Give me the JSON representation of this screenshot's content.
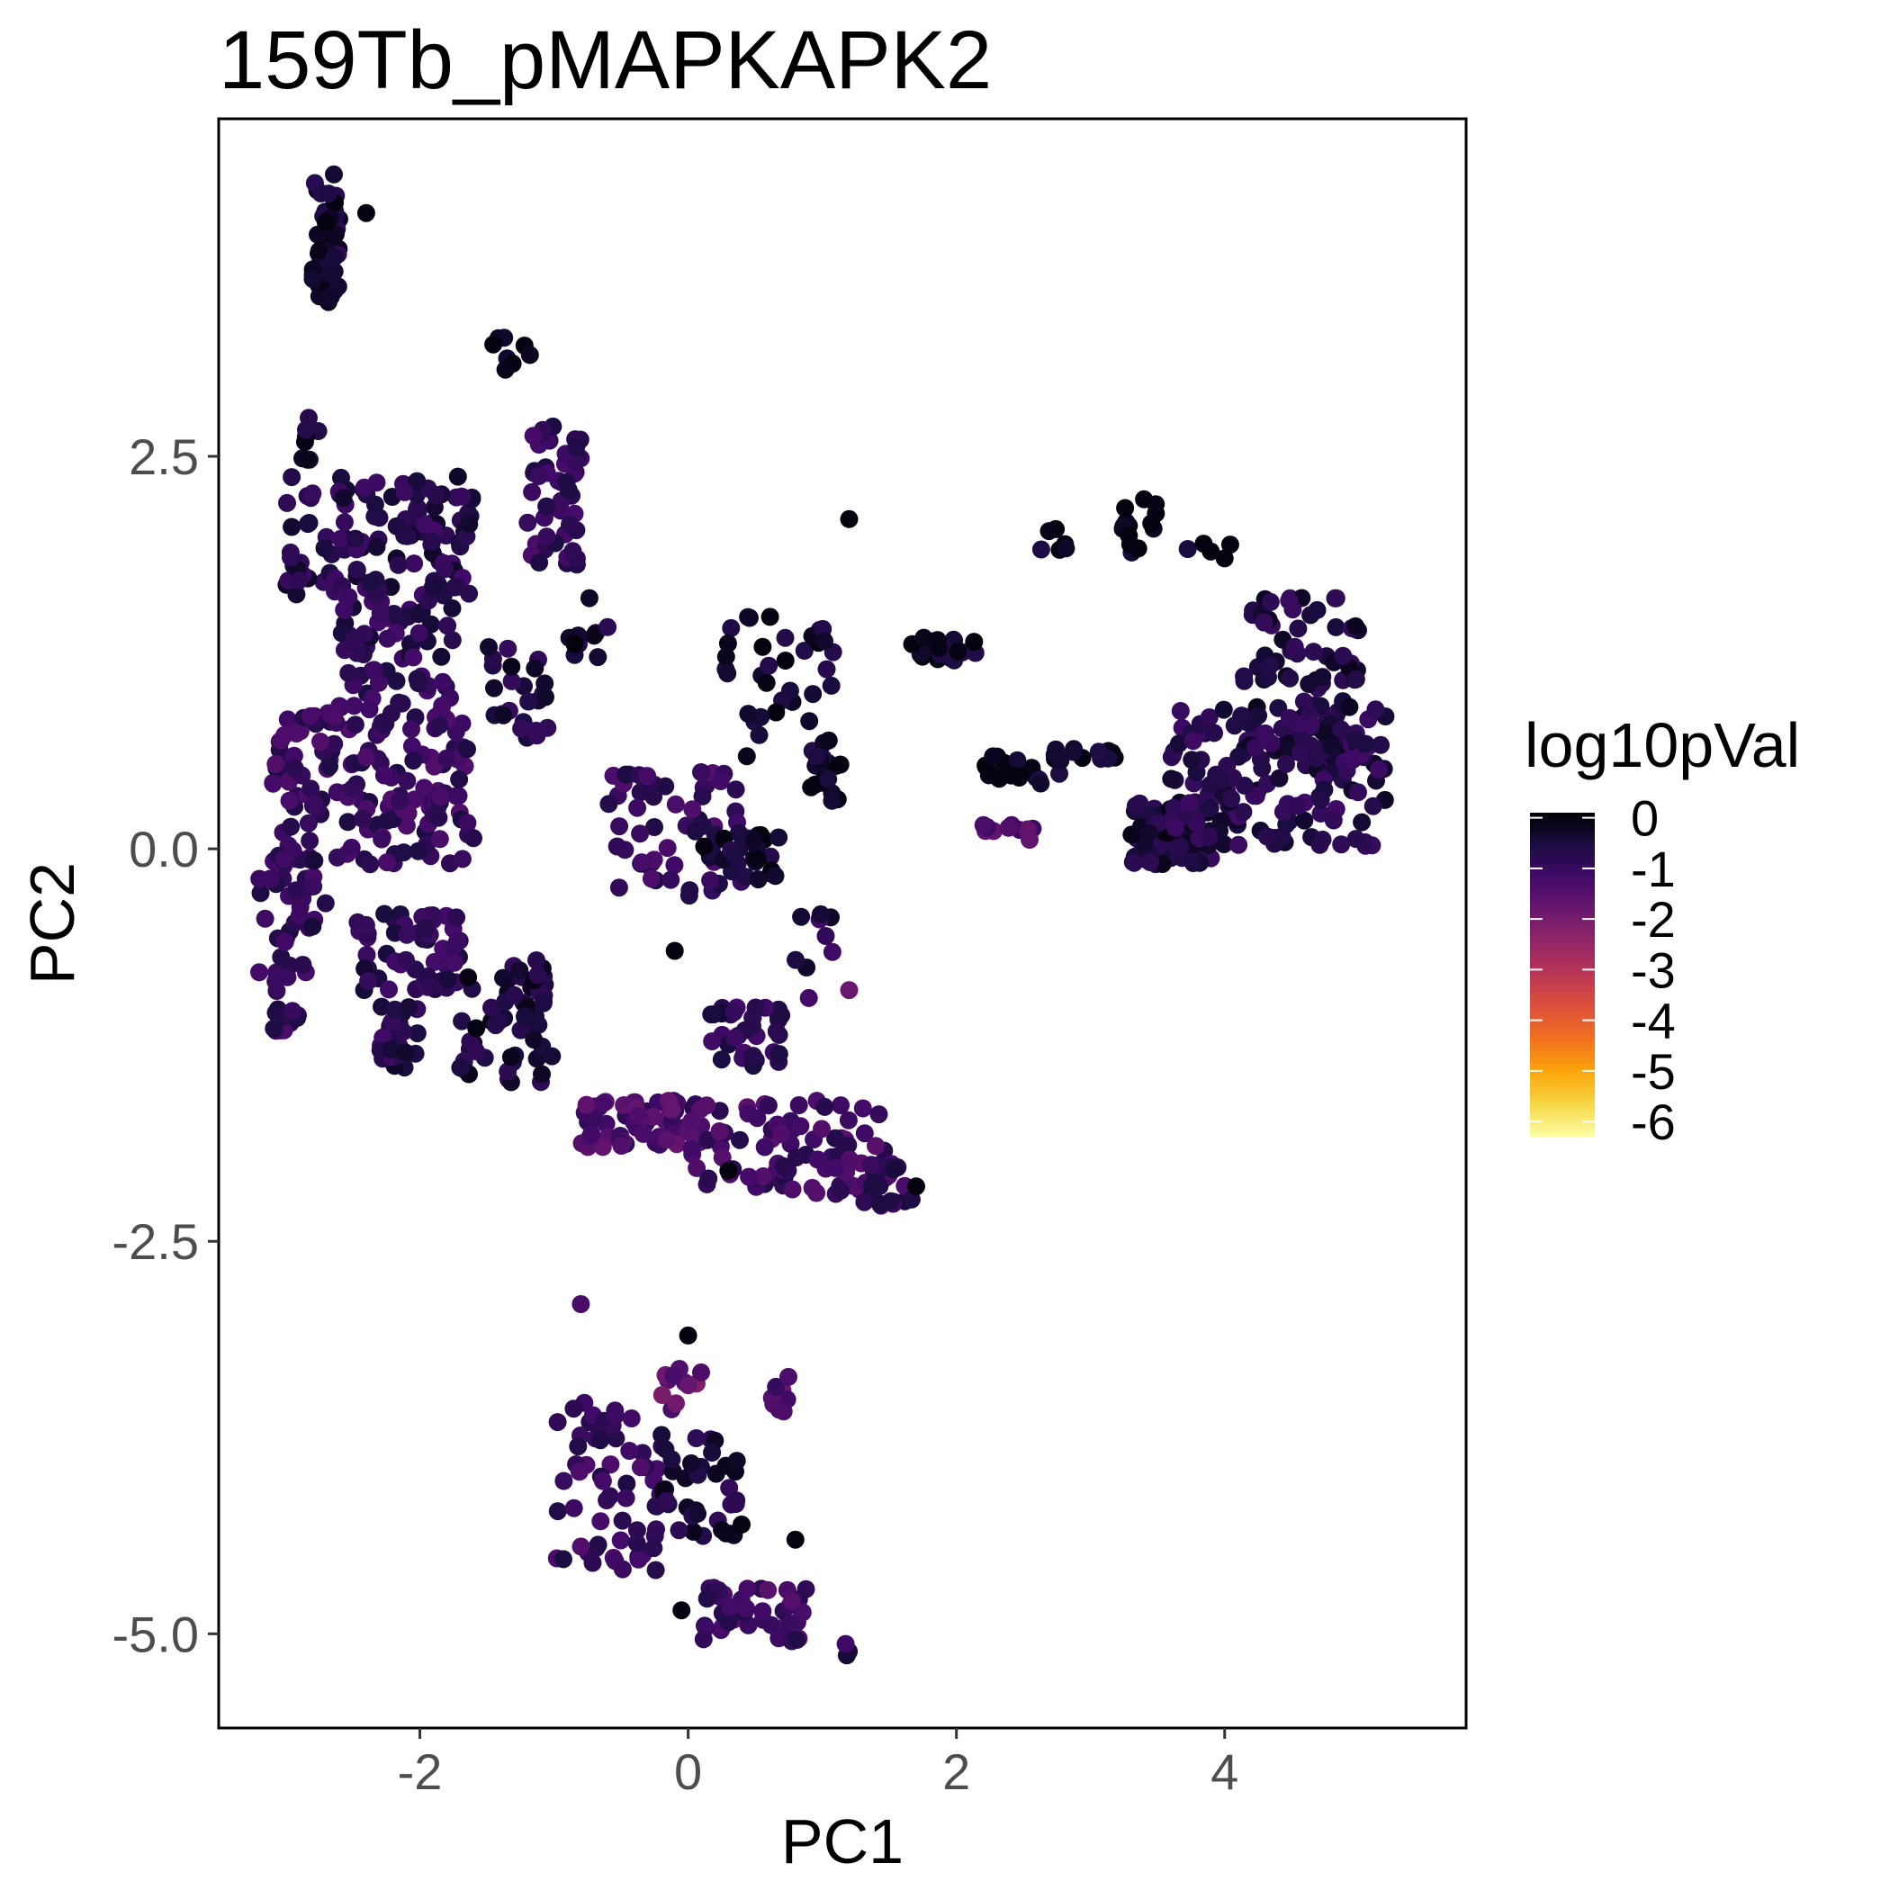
{
  "chart_data": {
    "type": "scatter",
    "title": "159Tb_pMAPKAPK2",
    "xlabel": "PC1",
    "ylabel": "PC2",
    "xlim": [
      -3.5,
      5.8
    ],
    "ylim": [
      -5.6,
      4.65
    ],
    "x_ticks": [
      -2,
      0,
      2,
      4
    ],
    "x_tick_labels": [
      "-2",
      "0",
      "2",
      "4"
    ],
    "y_ticks": [
      2.5,
      0.0,
      -2.5,
      -5.0
    ],
    "y_tick_labels": [
      "2.5",
      "0.0",
      "-2.5",
      "-5.0"
    ],
    "grid": false,
    "legend": {
      "title": "log10pVal",
      "placement": "right",
      "range": [
        -6.3,
        0.1
      ],
      "ticks": [
        0,
        -1,
        -2,
        -3,
        -4,
        -5,
        -6
      ],
      "tick_labels": [
        "0",
        "-1",
        "-2",
        "-3",
        "-4",
        "-5",
        "-6"
      ],
      "colormap": "inferno",
      "colors": [
        "#FCFFA4",
        "#F6D746",
        "#FCA50A",
        "#F1711F",
        "#DD513A",
        "#BA3655",
        "#932667",
        "#6A176E",
        "#420A68",
        "#1B0C41",
        "#000004"
      ]
    },
    "clusters": [
      {
        "x": [
          -2.8,
          -2.6
        ],
        "y": [
          3.4,
          4.3
        ],
        "n": 45,
        "val": -0.4
      },
      {
        "x": [
          -1.5,
          -1.1
        ],
        "y": [
          3.05,
          3.35
        ],
        "n": 8,
        "val": -0.2
      },
      {
        "x": [
          -2.9,
          -2.7
        ],
        "y": [
          2.45,
          2.75
        ],
        "n": 8,
        "val": -0.5
      },
      {
        "x": [
          -3.0,
          -1.6
        ],
        "y": [
          1.6,
          2.4
        ],
        "n": 120,
        "val": -0.7
      },
      {
        "x": [
          -1.2,
          -0.8
        ],
        "y": [
          1.8,
          2.7
        ],
        "n": 50,
        "val": -1.0
      },
      {
        "x": [
          -2.6,
          -1.7
        ],
        "y": [
          0.9,
          1.7
        ],
        "n": 70,
        "val": -0.8
      },
      {
        "x": [
          -3.1,
          -1.6
        ],
        "y": [
          -0.1,
          0.9
        ],
        "n": 160,
        "val": -1.0
      },
      {
        "x": [
          -3.2,
          -2.7
        ],
        "y": [
          -0.8,
          0.0
        ],
        "n": 40,
        "val": -0.9
      },
      {
        "x": [
          -3.1,
          -2.9
        ],
        "y": [
          -1.2,
          -0.8
        ],
        "n": 15,
        "val": -0.9
      },
      {
        "x": [
          -2.5,
          -1.7
        ],
        "y": [
          -0.9,
          -0.4
        ],
        "n": 60,
        "val": -0.8
      },
      {
        "x": [
          -2.3,
          -2.0
        ],
        "y": [
          -1.4,
          -1.0
        ],
        "n": 25,
        "val": -0.7
      },
      {
        "x": [
          -1.7,
          -1.0
        ],
        "y": [
          -1.5,
          -0.7
        ],
        "n": 60,
        "val": -0.5
      },
      {
        "x": [
          -1.5,
          -1.0
        ],
        "y": [
          0.7,
          1.3
        ],
        "n": 25,
        "val": -0.6
      },
      {
        "x": [
          -0.9,
          -0.6
        ],
        "y": [
          1.2,
          1.6
        ],
        "n": 10,
        "val": -0.4
      },
      {
        "x": [
          -0.8,
          0.1
        ],
        "y": [
          -1.9,
          -1.6
        ],
        "n": 60,
        "val": -1.3
      },
      {
        "x": [
          -0.6,
          0.4
        ],
        "y": [
          -0.3,
          0.5
        ],
        "n": 60,
        "val": -1.0
      },
      {
        "x": [
          0.2,
          1.1
        ],
        "y": [
          0.5,
          1.5
        ],
        "n": 40,
        "val": -0.3
      },
      {
        "x": [
          0.1,
          0.7
        ],
        "y": [
          -0.2,
          0.1
        ],
        "n": 25,
        "val": -0.3
      },
      {
        "x": [
          0.9,
          1.2
        ],
        "y": [
          0.3,
          0.6
        ],
        "n": 15,
        "val": -0.2
      },
      {
        "x": [
          0.8,
          1.1
        ],
        "y": [
          -0.8,
          -0.4
        ],
        "n": 8,
        "val": -0.7
      },
      {
        "x": [
          0.1,
          0.7
        ],
        "y": [
          -1.4,
          -1.0
        ],
        "n": 35,
        "val": -0.8
      },
      {
        "x": [
          0.0,
          1.5
        ],
        "y": [
          -2.2,
          -1.6
        ],
        "n": 90,
        "val": -1.1
      },
      {
        "x": [
          1.3,
          1.7
        ],
        "y": [
          -2.3,
          -2.0
        ],
        "n": 20,
        "val": -0.9
      },
      {
        "x": [
          1.65,
          2.2
        ],
        "y": [
          1.2,
          1.35
        ],
        "n": 25,
        "val": -0.3
      },
      {
        "x": [
          2.2,
          2.8
        ],
        "y": [
          0.4,
          0.6
        ],
        "n": 20,
        "val": -0.2
      },
      {
        "x": [
          2.2,
          2.6
        ],
        "y": [
          0.05,
          0.2
        ],
        "n": 10,
        "val": -1.5
      },
      {
        "x": [
          2.7,
          3.2
        ],
        "y": [
          0.55,
          0.65
        ],
        "n": 12,
        "val": -0.2
      },
      {
        "x": [
          2.6,
          2.9
        ],
        "y": [
          1.9,
          2.05
        ],
        "n": 6,
        "val": -0.2
      },
      {
        "x": [
          3.2,
          3.5
        ],
        "y": [
          2.0,
          2.3
        ],
        "n": 10,
        "val": -0.1
      },
      {
        "x": [
          3.2,
          4.1
        ],
        "y": [
          1.8,
          2.0
        ],
        "n": 8,
        "val": -0.1
      },
      {
        "x": [
          4.1,
          5.0
        ],
        "y": [
          0.5,
          1.6
        ],
        "n": 100,
        "val": -0.6
      },
      {
        "x": [
          3.3,
          3.9
        ],
        "y": [
          -0.1,
          0.3
        ],
        "n": 90,
        "val": -0.5
      },
      {
        "x": [
          3.6,
          5.2
        ],
        "y": [
          0.0,
          0.9
        ],
        "n": 150,
        "val": -0.7
      },
      {
        "x": [
          -1.0,
          -0.2
        ],
        "y": [
          -4.6,
          -3.5
        ],
        "n": 60,
        "val": -1.0
      },
      {
        "x": [
          -0.2,
          0.4
        ],
        "y": [
          -4.4,
          -3.7
        ],
        "n": 40,
        "val": -0.5
      },
      {
        "x": [
          -0.2,
          0.1
        ],
        "y": [
          -3.6,
          -3.3
        ],
        "n": 12,
        "val": -1.7
      },
      {
        "x": [
          0.1,
          0.9
        ],
        "y": [
          -5.05,
          -4.7
        ],
        "n": 45,
        "val": -1.1
      },
      {
        "x": [
          0.6,
          0.8
        ],
        "y": [
          -3.6,
          -3.3
        ],
        "n": 8,
        "val": -1.4
      },
      {
        "x": [
          1.15,
          1.2
        ],
        "y": [
          -5.15,
          -5.05
        ],
        "n": 3,
        "val": -0.7
      }
    ],
    "points": [
      {
        "x": -2.4,
        "y": 4.05,
        "val": 0.0
      },
      {
        "x": -0.8,
        "y": -2.9,
        "val": -1.3
      },
      {
        "x": 0.0,
        "y": -3.1,
        "val": 0.0
      },
      {
        "x": 1.7,
        "y": -2.15,
        "val": 0.0
      },
      {
        "x": 0.3,
        "y": -2.05,
        "val": 0.0
      },
      {
        "x": 4.0,
        "y": 1.85,
        "val": 0.0
      },
      {
        "x": 1.2,
        "y": 2.1,
        "val": 0.0
      },
      {
        "x": 0.9,
        "y": -0.95,
        "val": -1.2
      },
      {
        "x": 1.2,
        "y": -0.9,
        "val": -1.8
      },
      {
        "x": -0.1,
        "y": -0.65,
        "val": 0.0
      },
      {
        "x": 0.8,
        "y": -4.4,
        "val": 0.0
      },
      {
        "x": -0.05,
        "y": -4.85,
        "val": 0.0
      }
    ]
  }
}
